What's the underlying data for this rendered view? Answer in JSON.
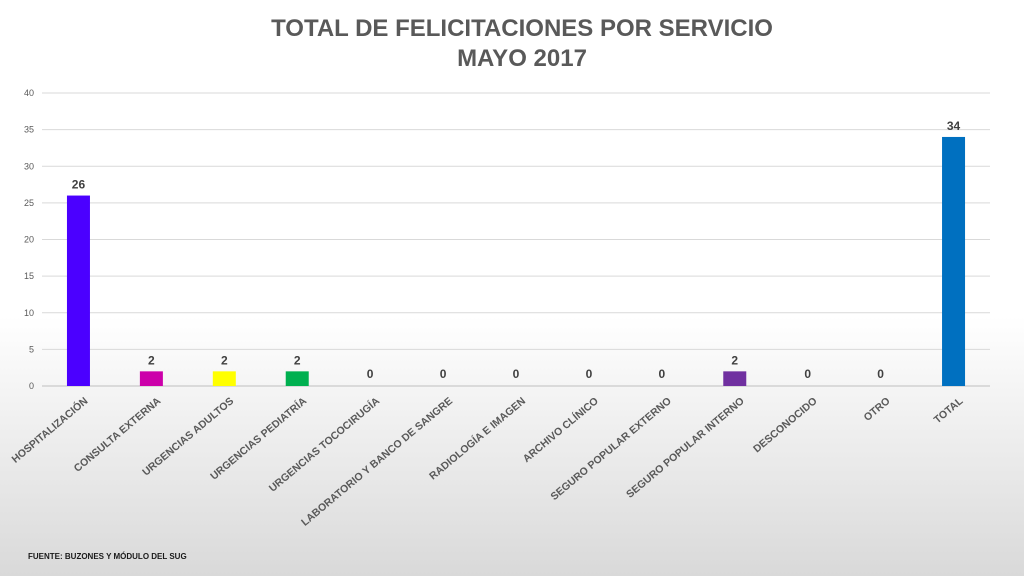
{
  "chart_data": {
    "type": "bar",
    "title": "TOTAL DE FELICITACIONES POR SERVICIO",
    "subtitle": "MAYO 2017",
    "categories": [
      "HOSPITALIZACIÓN",
      "CONSULTA EXTERNA",
      "URGENCIAS ADULTOS",
      "URGENCIAS PEDIATRÍA",
      "URGENCIAS TOCOCIRUGÍA",
      "LABORATORIO Y BANCO DE SANGRE",
      "RADIOLOGÍA E IMAGEN",
      "ARCHIVO CLÍNICO",
      "SEGURO POPULAR EXTERNO",
      "SEGURO POPULAR INTERNO",
      "DESCONOCIDO",
      "OTRO",
      "TOTAL"
    ],
    "values": [
      26,
      2,
      2,
      2,
      0,
      0,
      0,
      0,
      0,
      2,
      0,
      0,
      34
    ],
    "colors": [
      "#4b00ff",
      "#cc00aa",
      "#ffff00",
      "#00b050",
      "#808080",
      "#808080",
      "#808080",
      "#808080",
      "#808080",
      "#7030a0",
      "#808080",
      "#808080",
      "#0070c0"
    ],
    "ylim": [
      0,
      40
    ],
    "yticks": [
      0,
      5,
      10,
      15,
      20,
      25,
      30,
      35,
      40
    ],
    "grid": true,
    "xlabel": "",
    "ylabel": ""
  },
  "footer": {
    "source": "FUENTE: BUZONES Y MÓDULO DEL SUG"
  }
}
